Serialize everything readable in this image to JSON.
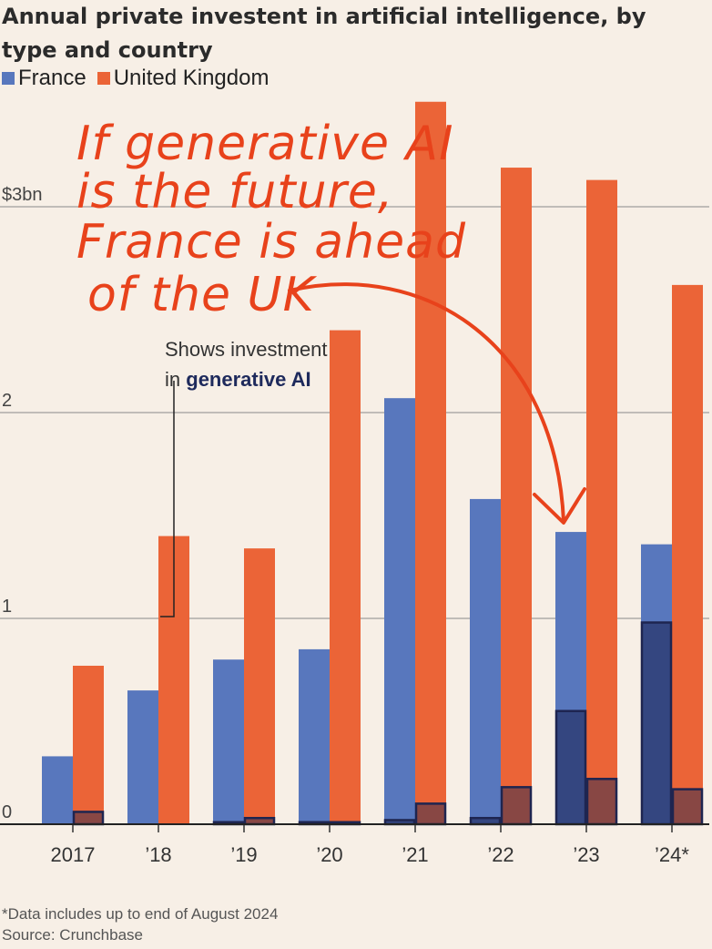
{
  "title": "Annual private investent in artificial intelligence, by type and country",
  "legend": [
    {
      "label": "France",
      "color": "#5877bd"
    },
    {
      "label": "United Kingdom",
      "color": "#eb6437"
    }
  ],
  "colors": {
    "france": "#5877bd",
    "uk": "#eb6437",
    "france_genai": "#344680",
    "uk_genai": "#884744",
    "outline": "#1e2550",
    "annotation": "#e8421b"
  },
  "annotations": {
    "handwritten": [
      "If generative AI",
      "is the future,",
      "France is ahead",
      "of the UK"
    ],
    "callout_prefix": "Shows investment",
    "callout_in": "in",
    "callout_bold": "generative AI"
  },
  "footnote": "*Data includes up to end of August 2024",
  "source": "Source: Crunchbase",
  "chart_data": {
    "type": "bar",
    "categories": [
      "2017",
      "’18",
      "’19",
      "’20",
      "’21",
      "’22",
      "’23",
      "’24*"
    ],
    "y_ticks": [
      "0",
      "1",
      "2",
      "$3bn"
    ],
    "ylim": [
      0,
      3.5
    ],
    "grid": true,
    "series": [
      {
        "name": "France",
        "values": [
          0.33,
          0.65,
          0.8,
          0.85,
          2.07,
          1.58,
          1.42,
          1.36
        ]
      },
      {
        "name": "United Kingdom",
        "values": [
          0.77,
          1.4,
          1.34,
          2.4,
          3.51,
          3.19,
          3.13,
          2.62
        ]
      }
    ],
    "generative_ai": {
      "France": [
        0.0,
        0.0,
        0.01,
        0.01,
        0.02,
        0.03,
        0.55,
        0.98
      ],
      "United Kingdom": [
        0.06,
        0.0,
        0.03,
        0.01,
        0.1,
        0.18,
        0.22,
        0.17
      ]
    }
  }
}
